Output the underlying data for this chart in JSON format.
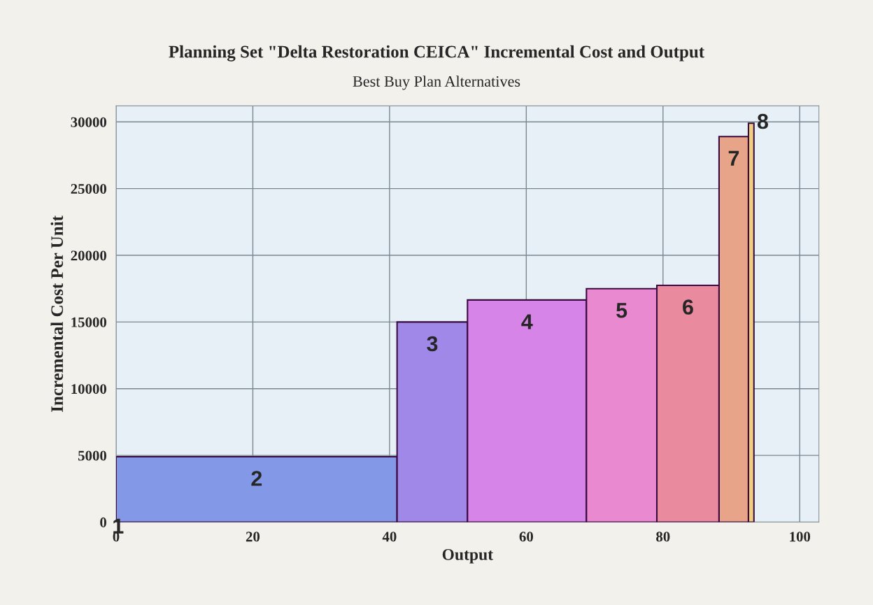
{
  "chart_data": {
    "type": "histogram",
    "title": "Planning Set \"Delta Restoration CEICA\" Incremental Cost and Output",
    "subtitle": "Best Buy Plan Alternatives",
    "xlabel": "Output",
    "ylabel": "Incremental Cost Per Unit",
    "bins": [
      0,
      41.1,
      51.4,
      68.8,
      79.1,
      88.2,
      92.5,
      93.3
    ],
    "values": [
      4900,
      15000,
      16650,
      17500,
      17750,
      28900,
      29900
    ],
    "colors": [
      "#8399e8",
      "#a088e8",
      "#d684e8",
      "#e98ad0",
      "#e98a9e",
      "#e8a488",
      "#f0d080"
    ],
    "xlim": [
      0,
      102.8
    ],
    "xticks": [
      0,
      20,
      40,
      60,
      80,
      100
    ],
    "ylim": [
      0,
      31200
    ],
    "yticks": [
      0,
      5000,
      10000,
      15000,
      20000,
      25000,
      30000
    ],
    "grid": true,
    "annotations": [
      "1",
      "2",
      "3",
      "4",
      "5",
      "6",
      "7",
      "8"
    ]
  }
}
